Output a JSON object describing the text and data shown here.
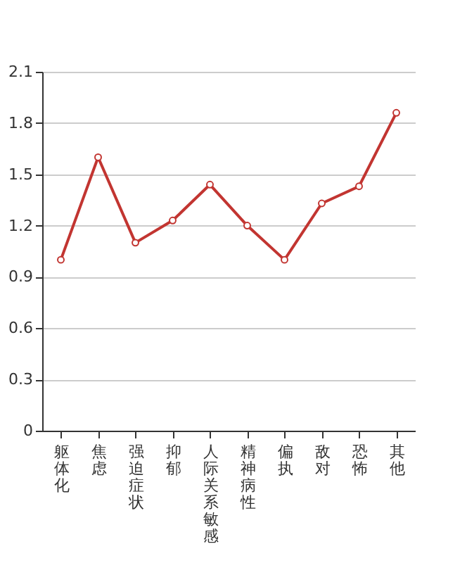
{
  "chart_data": {
    "type": "line",
    "categories": [
      "躯体化",
      "焦虑",
      "强迫症状",
      "抑郁",
      "人际关系敏感",
      "精神病性",
      "偏执",
      "敌对",
      "恐怖",
      "其他"
    ],
    "series": [
      {
        "color": "#c23531",
        "values": [
          1.0,
          1.6,
          1.1,
          1.23,
          1.44,
          1.2,
          1.0,
          1.33,
          1.43,
          1.86
        ]
      }
    ],
    "ylim": [
      0,
      2.1
    ],
    "yticks": [
      0,
      0.3,
      0.6,
      0.9,
      1.2,
      1.5,
      1.8,
      2.1
    ],
    "grid": "y",
    "marker": "circle",
    "line_style": "solid"
  }
}
